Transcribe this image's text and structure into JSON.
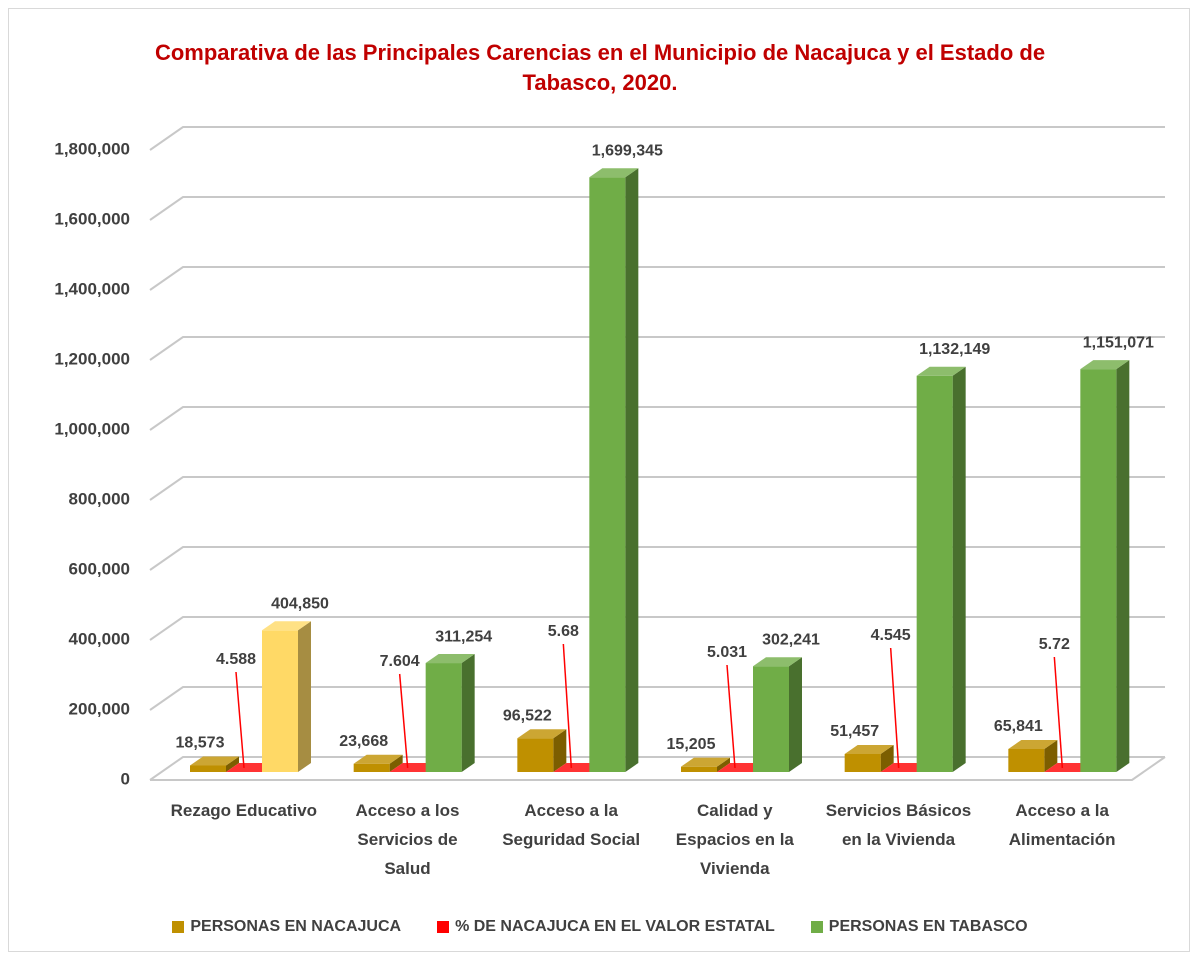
{
  "chart_data": {
    "type": "bar",
    "title": "Comparativa de las Principales Carencias en el Municipio de Nacajuca y el Estado de Tabasco, 2020.",
    "categories": [
      "Rezago Educativo",
      "Acceso a los Servicios de Salud",
      "Acceso a la Seguridad Social",
      "Calidad y Espacios en la Vivienda",
      "Servicios Básicos en la Vivienda",
      "Acceso a la Alimentación"
    ],
    "series": [
      {
        "name": "PERSONAS EN NACAJUCA",
        "color": "#bf9000",
        "values": [
          18573,
          23668,
          96522,
          15205,
          51457,
          65841
        ],
        "value_labels": [
          "18,573",
          "23,668",
          "96,522",
          "15,205",
          "51,457",
          "65,841"
        ]
      },
      {
        "name": "% DE NACAJUCA EN EL VALOR ESTATAL",
        "color": "#ff0000",
        "values": [
          4.588,
          7.604,
          5.68,
          5.031,
          4.545,
          5.72
        ]
      },
      {
        "name": "PERSONAS EN TABASCO",
        "color": "#70ad47",
        "colors": [
          "#ffd966",
          "#70ad47",
          "#70ad47",
          "#70ad47",
          "#70ad47",
          "#70ad47"
        ],
        "values": [
          404850,
          311254,
          1699345,
          302241,
          1132149,
          1151071
        ],
        "value_labels": [
          "404,850",
          "311,254",
          "1,699,345",
          "302,241",
          "1,132,149",
          "1,151,071"
        ]
      }
    ],
    "ylim": [
      0,
      1800000
    ],
    "yticks": [
      0,
      {
        "value": 200000,
        "label": "200,000"
      },
      {
        "value": 400000,
        "label": "400,000"
      },
      {
        "value": 600000,
        "label": "600,000"
      },
      {
        "value": 800000,
        "label": "800,000"
      },
      {
        "value": 1000000,
        "label": "1,000,000"
      },
      {
        "value": 1200000,
        "label": "1,200,000"
      },
      {
        "value": 1400000,
        "label": "1,400,000"
      },
      {
        "value": 1600000,
        "label": "1,600,000"
      },
      {
        "value": 1800000,
        "label": "1,800,000"
      }
    ],
    "grid": true,
    "legend": "bottom"
  }
}
